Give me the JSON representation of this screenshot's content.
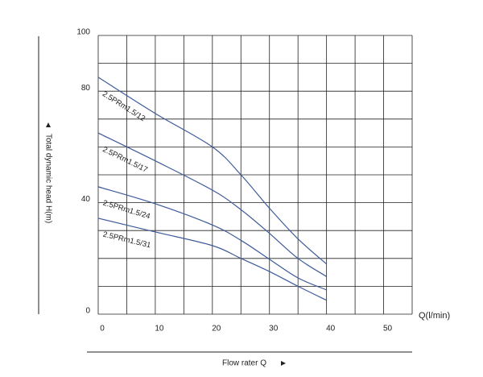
{
  "chart_data": {
    "type": "line",
    "x_label": "Flow rater Q",
    "x_unit_label": "Q(l/min)",
    "y_label": "Total dynamic head H(m)",
    "x": [
      0,
      10,
      20,
      25,
      30,
      35,
      40
    ],
    "series": [
      {
        "name": "2.5PRm1.5/12",
        "color": "#3d5b99",
        "values": [
          85,
          72,
          60,
          50,
          38,
          27,
          18
        ]
      },
      {
        "name": "2.5PRm1.5/17",
        "color": "#3d5b99",
        "values": [
          65,
          55,
          44.5,
          37.5,
          29,
          20,
          13.5
        ]
      },
      {
        "name": "2.5PRm1.5/24",
        "color": "#3d5b99",
        "values": [
          45.7,
          39.6,
          32,
          26.5,
          19.7,
          13,
          8.7
        ]
      },
      {
        "name": "2.5PRm1.5/31",
        "color": "#3d5b99",
        "values": [
          34.4,
          29.5,
          24.6,
          20,
          15.3,
          10,
          5
        ]
      }
    ],
    "xlim": [
      0,
      55
    ],
    "ylim": [
      0,
      100
    ],
    "xticks": [
      0,
      {
        "value": 5,
        "label": null
      },
      10,
      {
        "value": 15,
        "label": null
      },
      20,
      {
        "value": 25,
        "label": null
      },
      30,
      {
        "value": 35,
        "label": null
      },
      40,
      {
        "value": 45,
        "label": null
      },
      50,
      {
        "value": 55,
        "label": null
      }
    ],
    "yticks": [
      0,
      {
        "value": 10,
        "label": null
      },
      {
        "value": 20,
        "label": null
      },
      {
        "value": 30,
        "label": null
      },
      40,
      {
        "value": 50,
        "label": null
      },
      {
        "value": 60,
        "label": null
      },
      {
        "value": 70,
        "label": null
      },
      80,
      {
        "value": 90,
        "label": null
      },
      100
    ],
    "grid": true
  }
}
